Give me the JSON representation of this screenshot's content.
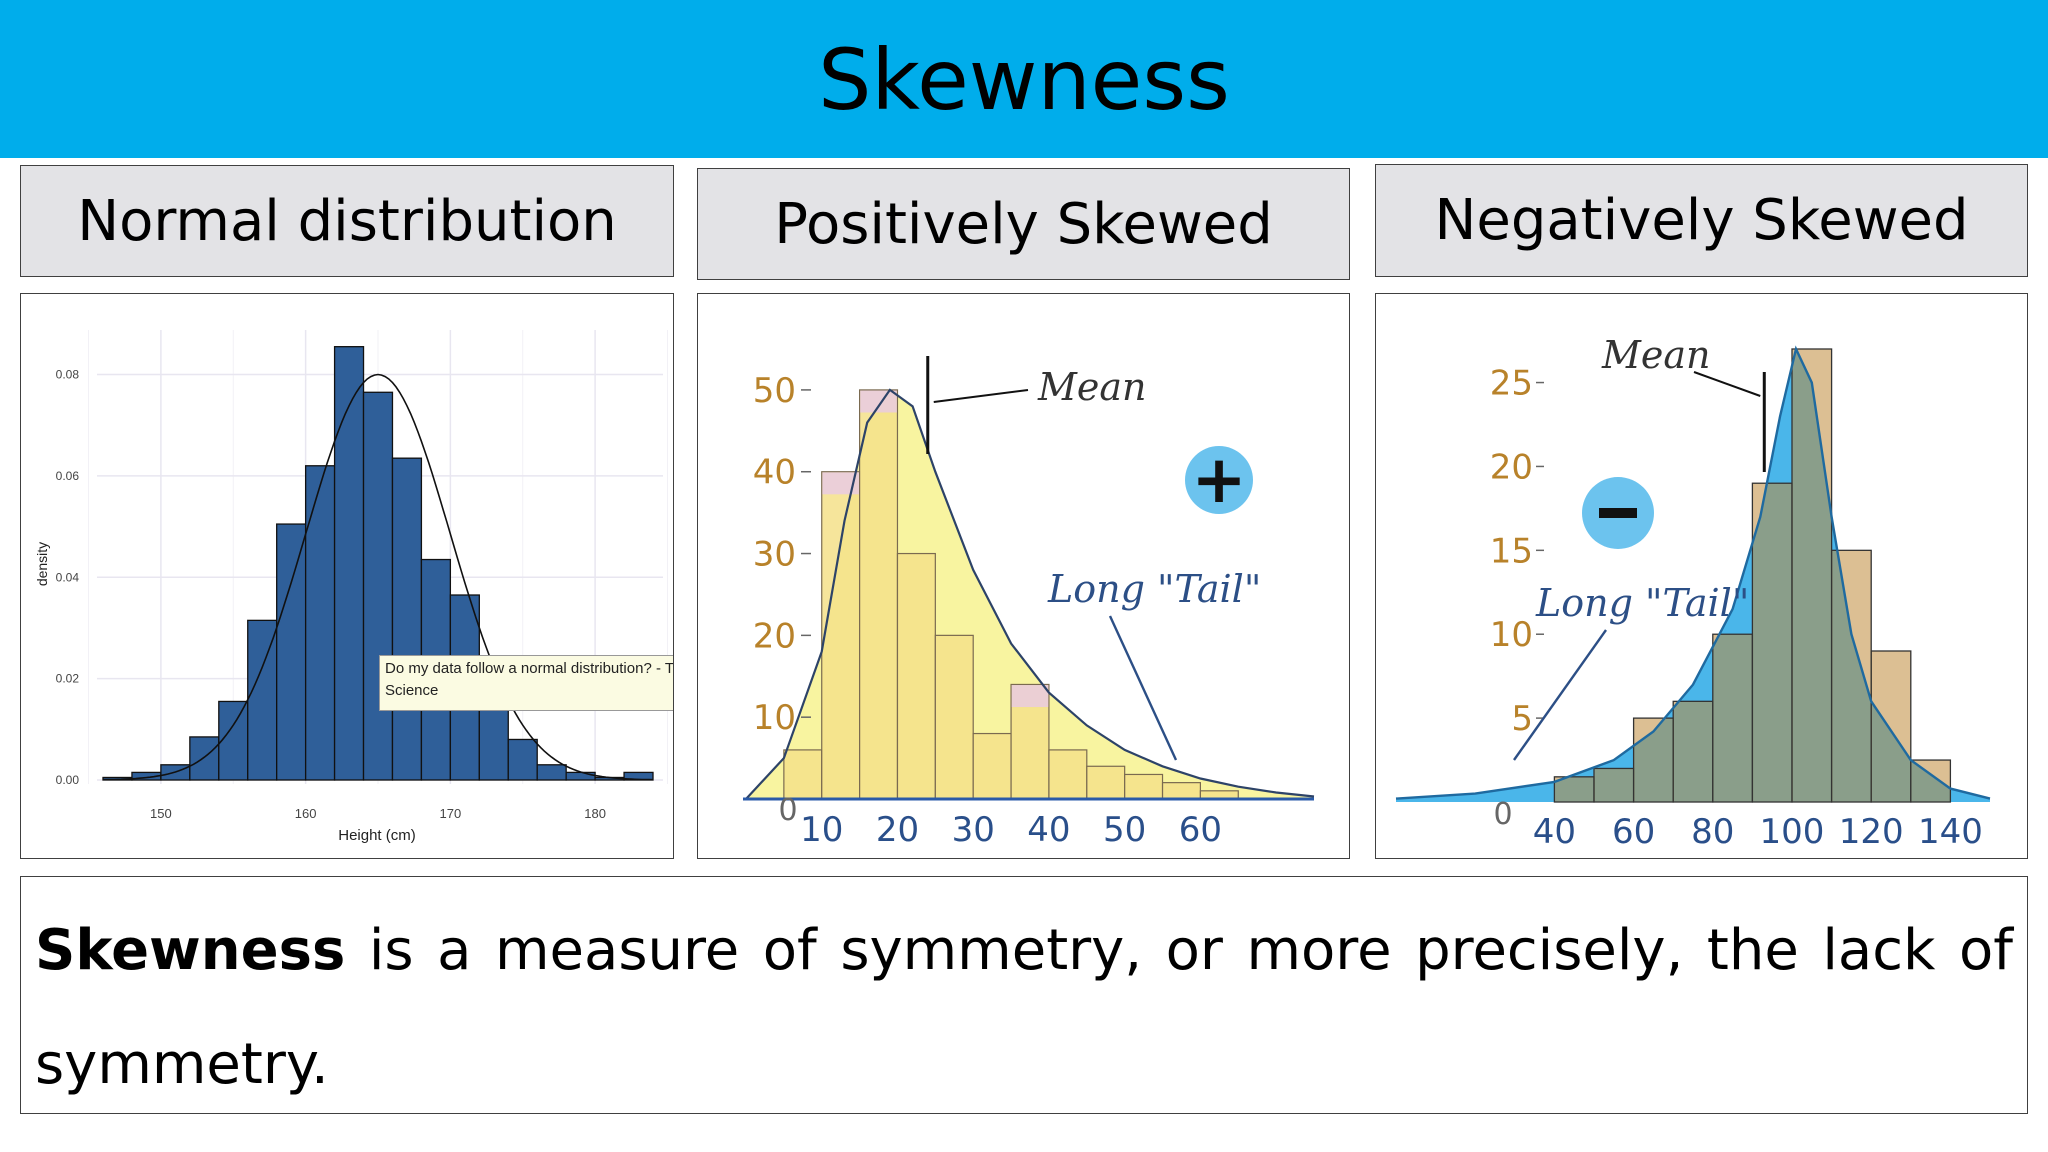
{
  "slide": {
    "title": "Skewness",
    "description_bold": "Skewness",
    "description_rest": "is a measure of symmetry, or more precisely, the lack of",
    "description_line2": "symmetry."
  },
  "panels": [
    {
      "heading": "Normal distribution"
    },
    {
      "heading": "Positively Skewed"
    },
    {
      "heading": "Negatively Skewed"
    }
  ],
  "tooltip": {
    "line1": "Do my data follow a normal distribution? - To",
    "line2": "Science"
  },
  "colors": {
    "banner": "#00adeb",
    "normal_bar": "#2f5f99",
    "pos_bar": "#f5e08a",
    "pos_curve_fill": "#f8f4a0",
    "neg_bar": "#4da2b5",
    "neg_curve": "#4ab6ea",
    "tick_label_pos": "#b8822a",
    "tick_label_x": "#2a4f8a"
  },
  "chart_data": [
    {
      "type": "bar",
      "ylabel": "density",
      "xlabel": "Height (cm)",
      "x_ticks": [
        150,
        160,
        170,
        180
      ],
      "y_ticks": [
        "0.00",
        "0.02",
        "0.04",
        "0.06",
        "0.08"
      ],
      "xlim": [
        146,
        184
      ],
      "ylim": [
        0,
        0.088
      ],
      "bin_width": 2,
      "bin_starts": [
        146,
        148,
        150,
        152,
        154,
        156,
        158,
        160,
        162,
        164,
        166,
        168,
        170,
        172,
        174,
        176,
        178,
        180,
        182
      ],
      "values": [
        0.0005,
        0.0015,
        0.003,
        0.0085,
        0.0155,
        0.0315,
        0.0505,
        0.062,
        0.0855,
        0.0765,
        0.0635,
        0.0435,
        0.0365,
        0.02,
        0.008,
        0.003,
        0.0015,
        0.0005,
        0.0015
      ],
      "curve": {
        "type": "normal",
        "mean": 165,
        "sd": 5,
        "peak": 0.08
      }
    },
    {
      "type": "bar",
      "annotations": [
        "Mean",
        "Long \"Tail\""
      ],
      "badge": "+",
      "x_ticks": [
        10,
        20,
        30,
        40,
        50,
        60
      ],
      "y_ticks": [
        "10",
        "20",
        "30",
        "40",
        "50"
      ],
      "origin_label": "0",
      "xlim": [
        0,
        75
      ],
      "ylim": [
        0,
        55
      ],
      "bin_width": 5,
      "bin_starts": [
        5,
        10,
        15,
        20,
        25,
        30,
        35,
        40,
        45,
        50,
        55,
        60
      ],
      "values": [
        6,
        40,
        50,
        30,
        20,
        8,
        14,
        6,
        4,
        3,
        2,
        1
      ],
      "curve": [
        [
          0,
          0
        ],
        [
          5,
          5
        ],
        [
          10,
          18
        ],
        [
          13,
          34
        ],
        [
          16,
          46
        ],
        [
          19,
          50
        ],
        [
          22,
          48
        ],
        [
          25,
          40
        ],
        [
          30,
          28
        ],
        [
          35,
          19
        ],
        [
          40,
          13
        ],
        [
          45,
          9
        ],
        [
          50,
          6
        ],
        [
          55,
          4
        ],
        [
          60,
          2.5
        ],
        [
          65,
          1.5
        ],
        [
          70,
          0.8
        ],
        [
          75,
          0.3
        ]
      ],
      "mean_marker_x": 24
    },
    {
      "type": "bar",
      "annotations": [
        "Mean",
        "Long \"Tail\""
      ],
      "badge": "−",
      "x_ticks": [
        40,
        60,
        80,
        100,
        120,
        140
      ],
      "y_ticks": [
        "5",
        "10",
        "15",
        "20",
        "25"
      ],
      "origin_label": "0",
      "xlim": [
        0,
        150
      ],
      "ylim": [
        0,
        27
      ],
      "bin_width": 10,
      "bin_starts": [
        30,
        40,
        50,
        60,
        70,
        80,
        90,
        100,
        110,
        120,
        130,
        140
      ],
      "values": [
        0,
        1.5,
        2,
        5,
        6,
        10,
        19,
        27,
        15,
        9,
        2.5,
        0
      ],
      "curve": [
        [
          0,
          0.2
        ],
        [
          20,
          0.5
        ],
        [
          40,
          1.2
        ],
        [
          55,
          2.5
        ],
        [
          65,
          4.2
        ],
        [
          75,
          7
        ],
        [
          85,
          11.5
        ],
        [
          92,
          17
        ],
        [
          97,
          23
        ],
        [
          101,
          27
        ],
        [
          105,
          25
        ],
        [
          110,
          17
        ],
        [
          115,
          10
        ],
        [
          120,
          6
        ],
        [
          130,
          2.5
        ],
        [
          140,
          0.8
        ],
        [
          150,
          0.2
        ]
      ],
      "mean_marker_x": 93
    }
  ]
}
